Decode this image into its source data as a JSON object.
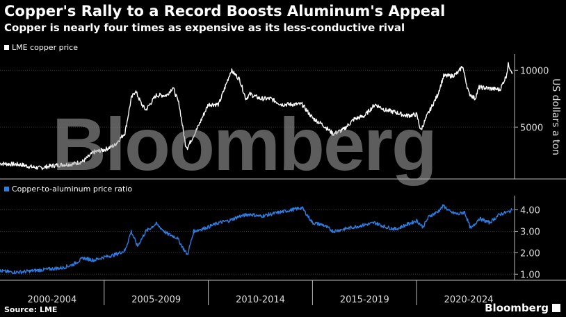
{
  "header": {
    "title": "Copper's Rally to a Record Boosts Aluminum's Appeal",
    "subtitle": "Copper is nearly four times as expensive as its less-conductive rival"
  },
  "footer": {
    "source": "Source: LME",
    "brand": "Bloomberg"
  },
  "watermark": "Bloomberg",
  "colors": {
    "copper_line": "#ffffff",
    "ratio_line": "#2f7de1",
    "background": "#000000"
  },
  "chart_data": [
    {
      "type": "line",
      "legend": "LME copper price",
      "ylabel": "US dollars a ton",
      "yticks": [
        {
          "value": 5000,
          "label": "5000"
        },
        {
          "value": 10000,
          "label": "10000"
        }
      ],
      "ylim": [
        500,
        11300
      ],
      "xlim": [
        2000.0,
        2024.7
      ],
      "series": [
        {
          "name": "LME copper price",
          "x": [
            2000.0,
            2000.5,
            2001.0,
            2001.5,
            2001.9,
            2002.5,
            2003.0,
            2003.5,
            2004.0,
            2004.5,
            2005.0,
            2005.5,
            2006.0,
            2006.3,
            2006.5,
            2006.8,
            2007.0,
            2007.5,
            2008.0,
            2008.3,
            2008.6,
            2008.9,
            2009.0,
            2009.5,
            2010.0,
            2010.5,
            2011.0,
            2011.1,
            2011.5,
            2011.8,
            2012.0,
            2012.5,
            2013.0,
            2013.5,
            2014.0,
            2014.5,
            2015.0,
            2015.5,
            2016.0,
            2016.5,
            2017.0,
            2017.5,
            2018.0,
            2018.5,
            2019.0,
            2019.5,
            2020.0,
            2020.2,
            2020.5,
            2021.0,
            2021.3,
            2021.7,
            2022.0,
            2022.2,
            2022.5,
            2022.8,
            2023.0,
            2023.5,
            2024.0,
            2024.3,
            2024.4,
            2024.6
          ],
          "values": [
            1800,
            1750,
            1700,
            1500,
            1400,
            1600,
            1700,
            1750,
            2000,
            2800,
            3000,
            3400,
            4500,
            7500,
            8200,
            7000,
            6500,
            7800,
            7800,
            8500,
            7000,
            3500,
            3200,
            5000,
            7000,
            7000,
            9500,
            10000,
            9200,
            7500,
            7900,
            7500,
            7500,
            7000,
            7000,
            7000,
            5800,
            5200,
            4400,
            4800,
            5700,
            6000,
            7000,
            6500,
            6300,
            6000,
            6100,
            4700,
            6000,
            7800,
            9500,
            9500,
            9800,
            10400,
            8000,
            7500,
            8500,
            8400,
            8300,
            9500,
            10500,
            9800
          ]
        }
      ]
    },
    {
      "type": "line",
      "legend": "Copper-to-aluminum price ratio",
      "yticks": [
        {
          "value": 1.0,
          "label": "1.00"
        },
        {
          "value": 2.0,
          "label": "2.00"
        },
        {
          "value": 3.0,
          "label": "3.00"
        },
        {
          "value": 4.0,
          "label": "4.00"
        }
      ],
      "ylim": [
        0.75,
        4.6
      ],
      "xlim": [
        2000.0,
        2024.7
      ],
      "series": [
        {
          "name": "Copper-to-aluminum price ratio",
          "x": [
            2000.0,
            2000.5,
            2001.0,
            2002.0,
            2002.5,
            2003.0,
            2003.5,
            2004.0,
            2004.5,
            2005.0,
            2005.5,
            2006.0,
            2006.3,
            2006.6,
            2007.0,
            2007.5,
            2008.0,
            2008.5,
            2008.8,
            2009.0,
            2009.3,
            2010.0,
            2010.5,
            2011.0,
            2011.5,
            2012.0,
            2012.5,
            2013.0,
            2013.5,
            2014.0,
            2014.5,
            2015.0,
            2015.5,
            2016.0,
            2016.5,
            2017.0,
            2017.5,
            2018.0,
            2018.5,
            2019.0,
            2019.5,
            2020.0,
            2020.3,
            2020.6,
            2021.0,
            2021.3,
            2021.6,
            2022.0,
            2022.3,
            2022.6,
            2023.0,
            2023.5,
            2024.0,
            2024.4,
            2024.6
          ],
          "values": [
            1.15,
            1.1,
            1.1,
            1.2,
            1.25,
            1.3,
            1.45,
            1.75,
            1.65,
            1.8,
            1.9,
            2.1,
            3.0,
            2.3,
            3.0,
            3.35,
            2.9,
            2.7,
            2.2,
            1.9,
            3.0,
            3.2,
            3.4,
            3.5,
            3.7,
            3.8,
            3.7,
            3.8,
            3.9,
            4.0,
            4.1,
            3.4,
            3.3,
            3.0,
            3.1,
            3.2,
            3.3,
            3.4,
            3.2,
            3.1,
            3.3,
            3.5,
            3.2,
            3.7,
            3.9,
            4.2,
            3.9,
            3.8,
            3.9,
            3.1,
            3.6,
            3.4,
            3.8,
            3.9,
            4.0
          ]
        }
      ]
    }
  ],
  "x_axis": {
    "labels": [
      {
        "label": "2000-2004",
        "value": 2002.5
      },
      {
        "label": "2005-2009",
        "value": 2007.5
      },
      {
        "label": "2010-2014",
        "value": 2012.5
      },
      {
        "label": "2015-2019",
        "value": 2017.5
      },
      {
        "label": "2020-2024",
        "value": 2022.5
      }
    ],
    "separators": [
      2005,
      2010,
      2015,
      2020
    ]
  }
}
